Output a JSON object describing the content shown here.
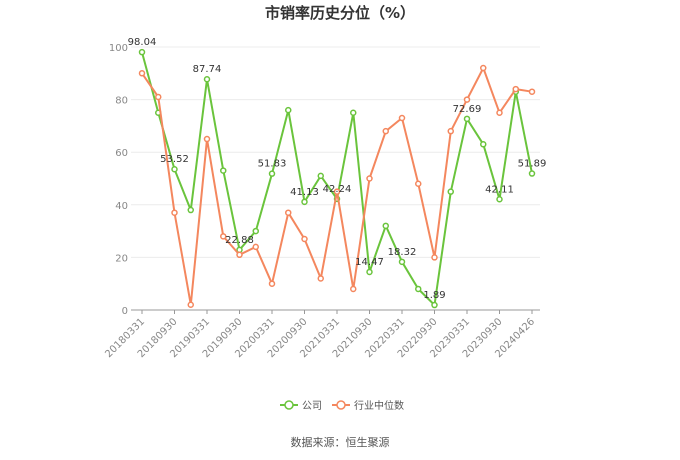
{
  "chart_data": {
    "type": "line",
    "title": "市销率历史分位（%）",
    "ylim": [
      0,
      100
    ],
    "yticks": [
      0,
      20,
      40,
      60,
      80,
      100
    ],
    "x_tick_labels": [
      "20180331",
      "20180930",
      "20190331",
      "20190930",
      "20200331",
      "20200930",
      "20210331",
      "20210930",
      "20220331",
      "20220930",
      "20230331",
      "20230930",
      "20240426"
    ],
    "grid": true,
    "legend_position": "bottom",
    "series": [
      {
        "name": "公司",
        "color": "#6ac43c",
        "values": [
          98.04,
          75,
          53.52,
          38,
          87.74,
          53,
          22.88,
          30,
          51.83,
          76,
          41.13,
          51,
          42.24,
          75,
          14.47,
          32,
          18.32,
          8,
          1.89,
          45,
          72.69,
          63,
          42.11,
          83,
          51.89
        ]
      },
      {
        "name": "行业中位数",
        "color": "#f4875e",
        "values": [
          90,
          81,
          37,
          2,
          65,
          28,
          21,
          24,
          10,
          37,
          27,
          12,
          45,
          8,
          50,
          68,
          73,
          48,
          20,
          68,
          80,
          92,
          75,
          84,
          83
        ]
      }
    ],
    "data_labels": [
      {
        "series": 0,
        "index": 0,
        "text": "98.04"
      },
      {
        "series": 0,
        "index": 2,
        "text": "53.52"
      },
      {
        "series": 0,
        "index": 4,
        "text": "87.74"
      },
      {
        "series": 0,
        "index": 6,
        "text": "22.88"
      },
      {
        "series": 0,
        "index": 8,
        "text": "51.83"
      },
      {
        "series": 0,
        "index": 10,
        "text": "41.13"
      },
      {
        "series": 0,
        "index": 12,
        "text": "42.24"
      },
      {
        "series": 0,
        "index": 14,
        "text": "14.47"
      },
      {
        "series": 0,
        "index": 16,
        "text": "18.32"
      },
      {
        "series": 0,
        "index": 18,
        "text": "1.89"
      },
      {
        "series": 0,
        "index": 20,
        "text": "72.69"
      },
      {
        "series": 0,
        "index": 22,
        "text": "42.11"
      },
      {
        "series": 0,
        "index": 24,
        "text": "51.89"
      }
    ]
  },
  "source_text": "数据来源：恒生聚源"
}
